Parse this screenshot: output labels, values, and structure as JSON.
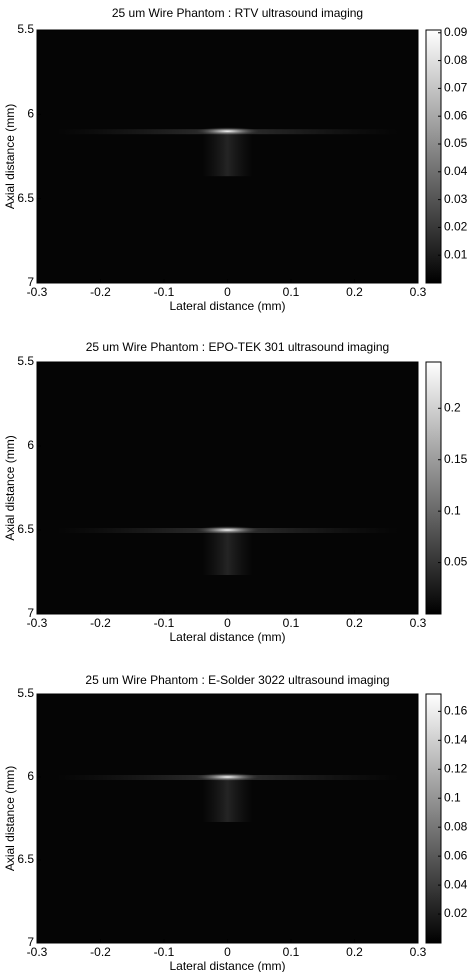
{
  "chart_data": [
    {
      "type": "heatmap",
      "title": "25 um Wire Phantom : RTV ultrasound imaging",
      "x_label": "Lateral distance (mm)",
      "y_label": "Axial distance (mm)",
      "xlim": [
        -0.3,
        0.3
      ],
      "xticks": [
        -0.3,
        -0.2,
        -0.1,
        0,
        0.1,
        0.2,
        0.3
      ],
      "ylim": [
        5.5,
        7
      ],
      "yticks": [
        5.5,
        6,
        6.5,
        7
      ],
      "y_reversed": true,
      "clim": [
        0,
        0.091
      ],
      "cticks": [
        0.01,
        0.02,
        0.03,
        0.04,
        0.05,
        0.06,
        0.07,
        0.08,
        0.09
      ],
      "colormap": "gray",
      "peak": {
        "x": 0,
        "y": 6.1,
        "value": 0.09
      }
    },
    {
      "type": "heatmap",
      "title": "25 um Wire Phantom : EPO-TEK 301 ultrasound imaging",
      "x_label": "Lateral distance (mm)",
      "y_label": "Axial distance (mm)",
      "xlim": [
        -0.3,
        0.3
      ],
      "xticks": [
        -0.3,
        -0.2,
        -0.1,
        0,
        0.1,
        0.2,
        0.3
      ],
      "ylim": [
        5.5,
        7
      ],
      "yticks": [
        5.5,
        6,
        6.5,
        7
      ],
      "y_reversed": true,
      "clim": [
        0,
        0.245
      ],
      "cticks": [
        0.05,
        0.1,
        0.15,
        0.2
      ],
      "colormap": "gray",
      "peak": {
        "x": 0,
        "y": 6.5,
        "value": 0.24
      }
    },
    {
      "type": "heatmap",
      "title": "25 um Wire Phantom : E-Solder 3022 ultrasound imaging",
      "x_label": "Lateral distance (mm)",
      "y_label": "Axial distance (mm)",
      "xlim": [
        -0.3,
        0.3
      ],
      "xticks": [
        -0.3,
        -0.2,
        -0.1,
        0,
        0.1,
        0.2,
        0.3
      ],
      "ylim": [
        5.5,
        7
      ],
      "yticks": [
        5.5,
        6,
        6.5,
        7
      ],
      "y_reversed": true,
      "clim": [
        0,
        0.172
      ],
      "cticks": [
        0.02,
        0.04,
        0.06,
        0.08,
        0.1,
        0.12,
        0.14,
        0.16
      ],
      "colormap": "gray",
      "peak": {
        "x": 0,
        "y": 6,
        "value": 0.17
      }
    }
  ]
}
